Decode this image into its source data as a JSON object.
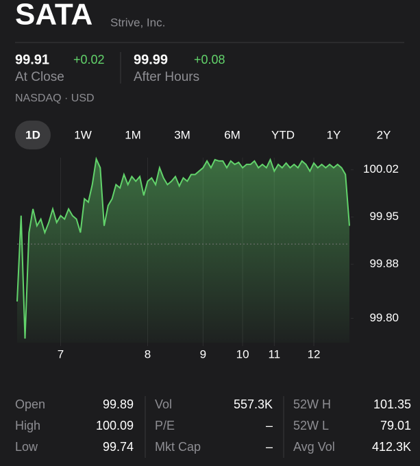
{
  "header": {
    "symbol": "SATA",
    "company": "Strive, Inc."
  },
  "quote": {
    "close": {
      "price": "99.91",
      "change": "+0.02",
      "label": "At Close"
    },
    "after_hours": {
      "price": "99.99",
      "change": "+0.08",
      "label": "After Hours"
    },
    "exchange": "NASDAQ · USD"
  },
  "tabs": [
    "1D",
    "1W",
    "1M",
    "3M",
    "6M",
    "YTD",
    "1Y",
    "2Y"
  ],
  "chart_data": {
    "type": "line",
    "color": "#62d36b",
    "values": [
      99.825,
      99.952,
      99.77,
      99.927,
      99.962,
      99.937,
      99.947,
      99.927,
      99.942,
      99.962,
      99.942,
      99.952,
      99.947,
      99.962,
      99.952,
      99.947,
      99.927,
      99.977,
      99.972,
      99.998,
      100.036,
      100.023,
      99.937,
      99.967,
      99.977,
      99.998,
      99.993,
      100.013,
      99.998,
      100.01,
      100.003,
      100.01,
      99.982,
      100.003,
      100.008,
      99.998,
      100.023,
      100.008,
      99.998,
      100.003,
      100.01,
      99.996,
      100.008,
      100.003,
      100.013,
      100.013,
      100.018,
      100.023,
      100.033,
      100.023,
      100.035,
      100.033,
      100.033,
      100.023,
      100.033,
      100.028,
      100.031,
      100.023,
      100.028,
      100.028,
      100.033,
      100.023,
      100.028,
      100.023,
      100.035,
      100.018,
      100.028,
      100.023,
      100.03,
      100.023,
      100.028,
      100.023,
      100.033,
      100.028,
      100.018,
      100.03,
      100.023,
      100.028,
      100.023,
      100.028,
      100.023,
      100.028,
      100.023,
      100.013,
      99.937
    ],
    "xticks": [
      {
        "value": 11,
        "label": "7"
      },
      {
        "value": 33,
        "label": "8"
      },
      {
        "value": 47,
        "label": "9"
      },
      {
        "value": 57,
        "label": "10"
      },
      {
        "value": 65,
        "label": "11"
      },
      {
        "value": 75,
        "label": "12"
      }
    ],
    "ylim": [
      99.764,
      100.038
    ],
    "yticks": [
      100.02,
      99.95,
      99.88,
      {
        "value": 99.8,
        "label": "99.80"
      }
    ],
    "reference": 99.91
  },
  "stats": [
    [
      {
        "label": "Open",
        "value": "99.89"
      },
      {
        "label": "High",
        "value": "100.09"
      },
      {
        "label": "Low",
        "value": "99.74"
      }
    ],
    [
      {
        "label": "Vol",
        "value": "557.3K"
      },
      {
        "label": "P/E",
        "value": "–"
      },
      {
        "label": "Mkt Cap",
        "value": "–"
      }
    ],
    [
      {
        "label": "52W H",
        "value": "101.35"
      },
      {
        "label": "52W L",
        "value": "79.01"
      },
      {
        "label": "Avg Vol",
        "value": "412.3K"
      }
    ]
  ]
}
